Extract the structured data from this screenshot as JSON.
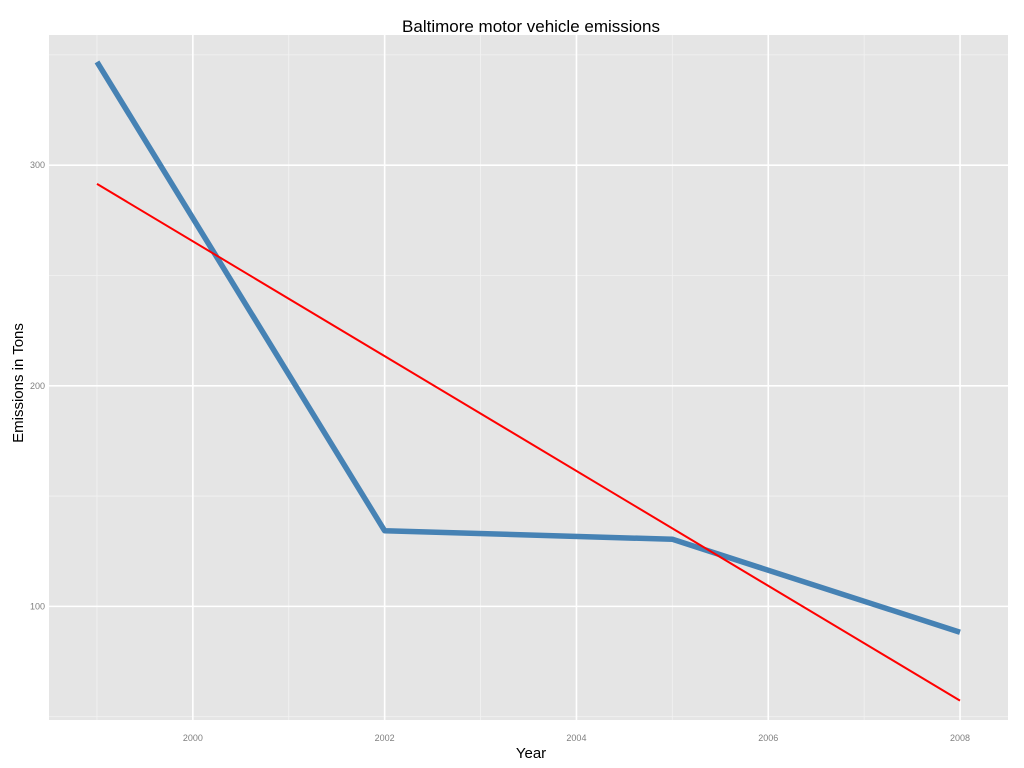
{
  "chart_data": {
    "type": "line",
    "title": "Baltimore motor vehicle emissions",
    "xlabel": "Year",
    "ylabel": "Emissions in Tons",
    "xlim": [
      1998.5,
      2008.5
    ],
    "ylim": [
      48.5,
      359
    ],
    "x_ticks": [
      2000,
      2002,
      2004,
      2006,
      2008
    ],
    "y_ticks": [
      100,
      200,
      300
    ],
    "grid": true,
    "series": [
      {
        "color": "#4682B4",
        "style": "thick line",
        "x": [
          1999,
          2002,
          2005,
          2008
        ],
        "y": [
          346.8,
          134.3,
          130.4,
          88.3
        ]
      },
      {
        "color": "#FF0000",
        "style": "thin line (linear trend)",
        "x": [
          1999,
          2008
        ],
        "y": [
          291.5,
          57.3
        ]
      }
    ]
  }
}
